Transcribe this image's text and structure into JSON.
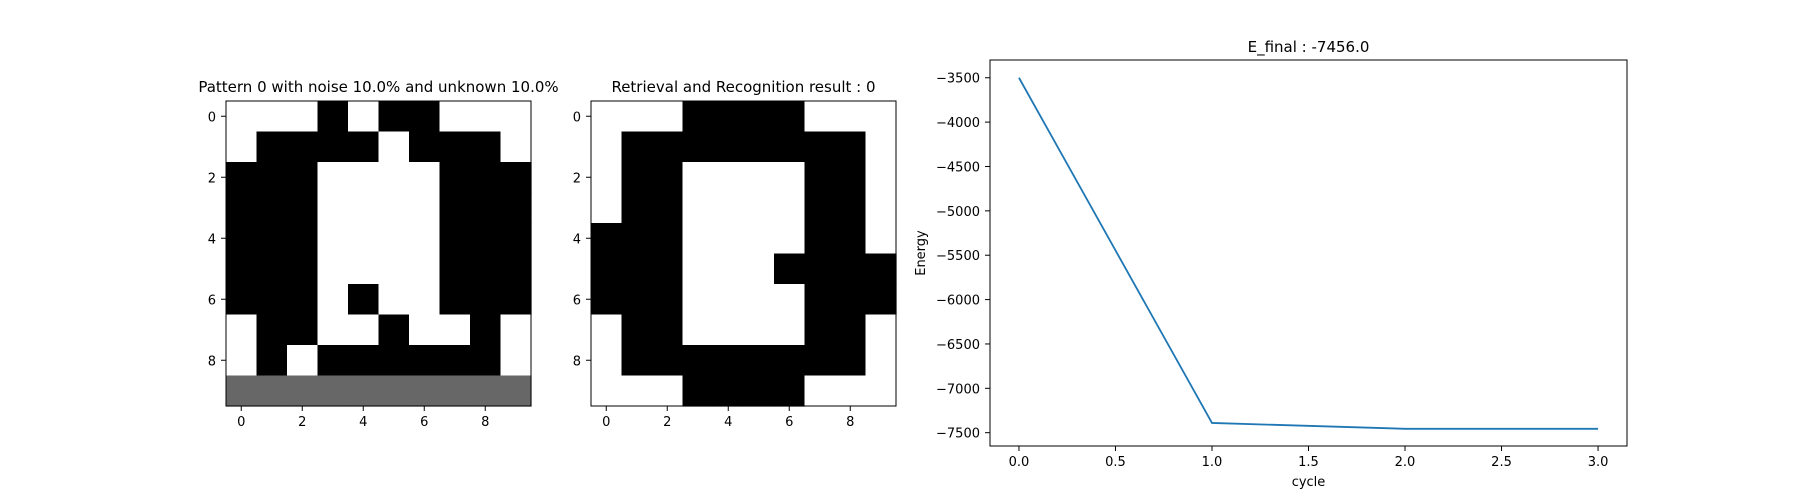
{
  "chart_data": [
    {
      "type": "heatmap",
      "title": "Pattern 0 with noise 10.0% and unknown 10.0%",
      "colormap": "gray",
      "legend": {
        "0": "black",
        "1": "white",
        "unknown": "gray"
      },
      "xticks": [
        "0",
        "2",
        "4",
        "6",
        "8"
      ],
      "yticks": [
        "0",
        "2",
        "4",
        "6",
        "8"
      ],
      "xlim": [
        -0.5,
        9.5
      ],
      "ylim": [
        9.5,
        -0.5
      ],
      "grid": [
        [
          1,
          1,
          1,
          0,
          1,
          0,
          0,
          1,
          1,
          1
        ],
        [
          1,
          0,
          0,
          0,
          0,
          1,
          0,
          0,
          0,
          1
        ],
        [
          0,
          0,
          0,
          1,
          1,
          1,
          1,
          0,
          0,
          0
        ],
        [
          0,
          0,
          0,
          1,
          1,
          1,
          1,
          0,
          0,
          0
        ],
        [
          0,
          0,
          0,
          1,
          1,
          1,
          1,
          0,
          0,
          0
        ],
        [
          0,
          0,
          0,
          1,
          1,
          1,
          1,
          0,
          0,
          0
        ],
        [
          0,
          0,
          0,
          1,
          0,
          1,
          1,
          0,
          0,
          0
        ],
        [
          1,
          0,
          0,
          1,
          1,
          0,
          1,
          1,
          0,
          1
        ],
        [
          1,
          0,
          1,
          0,
          0,
          0,
          0,
          0,
          0,
          1
        ],
        [
          2,
          2,
          2,
          2,
          2,
          2,
          2,
          2,
          2,
          2
        ]
      ]
    },
    {
      "type": "heatmap",
      "title": "Retrieval and Recognition result : 0",
      "colormap": "gray",
      "legend": {
        "0": "black",
        "1": "white"
      },
      "xticks": [
        "0",
        "2",
        "4",
        "6",
        "8"
      ],
      "yticks": [
        "0",
        "2",
        "4",
        "6",
        "8"
      ],
      "xlim": [
        -0.5,
        9.5
      ],
      "ylim": [
        9.5,
        -0.5
      ],
      "grid": [
        [
          1,
          1,
          1,
          0,
          0,
          0,
          0,
          1,
          1,
          1
        ],
        [
          1,
          0,
          0,
          0,
          0,
          0,
          0,
          0,
          0,
          1
        ],
        [
          1,
          0,
          0,
          1,
          1,
          1,
          1,
          0,
          0,
          1
        ],
        [
          1,
          0,
          0,
          1,
          1,
          1,
          1,
          0,
          0,
          1
        ],
        [
          0,
          0,
          0,
          1,
          1,
          1,
          1,
          0,
          0,
          1
        ],
        [
          0,
          0,
          0,
          1,
          1,
          1,
          0,
          0,
          0,
          0
        ],
        [
          0,
          0,
          0,
          1,
          1,
          1,
          1,
          0,
          0,
          0
        ],
        [
          1,
          0,
          0,
          1,
          1,
          1,
          1,
          0,
          0,
          1
        ],
        [
          1,
          0,
          0,
          0,
          0,
          0,
          0,
          0,
          0,
          1
        ],
        [
          1,
          1,
          1,
          0,
          0,
          0,
          0,
          1,
          1,
          1
        ]
      ]
    },
    {
      "type": "line",
      "title": "E_final : -7456.0",
      "xlabel": "cycle",
      "ylabel": "Energy",
      "x": [
        0,
        1,
        2,
        3
      ],
      "series": [
        {
          "values": [
            -3500,
            -7390,
            -7456,
            -7456
          ],
          "color": "#1f77b4"
        }
      ],
      "xlim": [
        -0.15,
        3.15
      ],
      "ylim": [
        -7650,
        -3300
      ],
      "xticks": [
        0.0,
        0.5,
        1.0,
        1.5,
        2.0,
        2.5,
        3.0
      ],
      "xtick_labels": [
        "0.0",
        "0.5",
        "1.0",
        "1.5",
        "2.0",
        "2.5",
        "3.0"
      ],
      "yticks": [
        -3500,
        -4000,
        -4500,
        -5000,
        -5500,
        -6000,
        -6500,
        -7000,
        -7500
      ],
      "ytick_labels": [
        "−3500",
        "−4000",
        "−4500",
        "−5000",
        "−5500",
        "−6000",
        "−6500",
        "−7000",
        "−7500"
      ],
      "grid": false
    }
  ]
}
